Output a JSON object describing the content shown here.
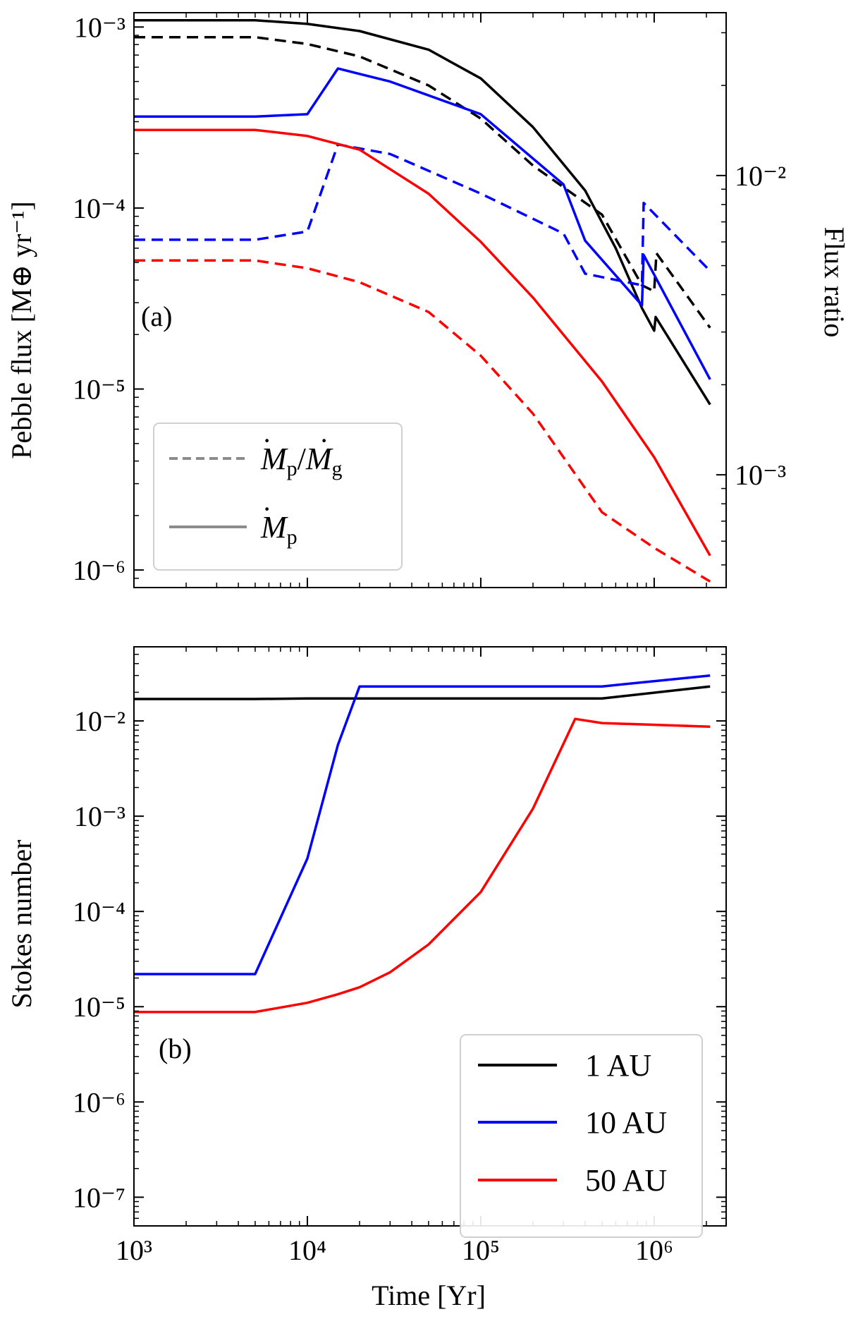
{
  "chart_data": [
    {
      "type": "line",
      "panel_label": "(a)",
      "xscale": "log",
      "yscale": "log",
      "xlim": [
        1000,
        2600000
      ],
      "ylim": [
        8e-07,
        0.0012
      ],
      "y2lim": [
        0.00042,
        0.035
      ],
      "xlabel": "",
      "ylabel": "Pebble flux [M⊕ yr⁻¹]",
      "y2label": "Flux ratio",
      "xticks": [
        {
          "value": 1000,
          "label": "10³"
        },
        {
          "value": 10000,
          "label": "10⁴"
        },
        {
          "value": 100000,
          "label": "10⁵"
        },
        {
          "value": 1000000,
          "label": "10⁶"
        }
      ],
      "yticks": [
        {
          "value": 1e-06,
          "label": "10⁻⁶"
        },
        {
          "value": 1e-05,
          "label": "10⁻⁵"
        },
        {
          "value": 0.0001,
          "label": "10⁻⁴"
        },
        {
          "value": 0.001,
          "label": "10⁻³"
        }
      ],
      "y2ticks": [
        {
          "value": 0.001,
          "label": "10⁻³"
        },
        {
          "value": 0.01,
          "label": "10⁻²"
        }
      ],
      "legend": {
        "placement": "lower-left",
        "entries": [
          {
            "label": "Ṁp/Ṁg",
            "style": "dashed",
            "color": "#8c8c8c"
          },
          {
            "label": "Ṁp",
            "style": "solid",
            "color": "#8c8c8c"
          }
        ]
      },
      "series": [
        {
          "name": "1 AU Ṁp",
          "color": "#000000",
          "style": "solid",
          "axis": "left",
          "x": [
            1000,
            5000,
            10000,
            20000,
            50000,
            100000,
            200000,
            400000,
            600000,
            850000,
            1000000,
            1020000,
            2100000
          ],
          "y": [
            0.00109,
            0.00109,
            0.00104,
            0.00095,
            0.00075,
            0.00052,
            0.00028,
            0.000125,
            6e-05,
            2.8e-05,
            2.1e-05,
            2.5e-05,
            8.2e-06
          ]
        },
        {
          "name": "1 AU Ṁp/Ṁg",
          "color": "#000000",
          "style": "dashed",
          "axis": "right",
          "x": [
            1000,
            5000,
            10000,
            20000,
            50000,
            100000,
            200000,
            500000,
            850000,
            1000000,
            1030000,
            2100000
          ],
          "y": [
            0.029,
            0.029,
            0.0275,
            0.025,
            0.02,
            0.0155,
            0.0108,
            0.0074,
            0.0043,
            0.0041,
            0.0055,
            0.0031
          ]
        },
        {
          "name": "10 AU Ṁp",
          "color": "#0000ff",
          "style": "solid",
          "axis": "left",
          "x": [
            1000,
            5000,
            10000,
            15000,
            30000,
            100000,
            300000,
            400000,
            850000,
            870000,
            2100000
          ],
          "y": [
            0.00032,
            0.00032,
            0.00033,
            0.00059,
            0.0005,
            0.00033,
            0.000135,
            6.6e-05,
            2.9e-05,
            5.5e-05,
            1.13e-05
          ]
        },
        {
          "name": "10 AU Ṁp/Ṁg",
          "color": "#0000ff",
          "style": "dashed",
          "axis": "right",
          "x": [
            1000,
            5000,
            10000,
            15000,
            30000,
            100000,
            300000,
            400000,
            850000,
            870000,
            2100000
          ],
          "y": [
            0.0061,
            0.0061,
            0.0065,
            0.0127,
            0.0118,
            0.0087,
            0.0064,
            0.0047,
            0.0043,
            0.0081,
            0.0048
          ]
        },
        {
          "name": "50 AU Ṁp",
          "color": "#ff0000",
          "style": "solid",
          "axis": "left",
          "x": [
            1000,
            5000,
            10000,
            20000,
            50000,
            100000,
            200000,
            500000,
            1000000,
            2100000
          ],
          "y": [
            0.00027,
            0.00027,
            0.00025,
            0.00021,
            0.00012,
            6.5e-05,
            3.2e-05,
            1.1e-05,
            4.2e-06,
            1.2e-06
          ]
        },
        {
          "name": "50 AU Ṁp/Ṁg",
          "color": "#ff0000",
          "style": "dashed",
          "axis": "right",
          "x": [
            1000,
            5000,
            10000,
            20000,
            50000,
            100000,
            200000,
            500000,
            1000000,
            2100000
          ],
          "y": [
            0.0052,
            0.0052,
            0.0049,
            0.0044,
            0.0035,
            0.0025,
            0.0016,
            0.00075,
            0.00057,
            0.00044
          ]
        }
      ]
    },
    {
      "type": "line",
      "panel_label": "(b)",
      "xscale": "log",
      "yscale": "log",
      "xlim": [
        1000,
        2600000
      ],
      "ylim": [
        5e-08,
        0.06
      ],
      "xlabel": "Time [Yr]",
      "ylabel": "Stokes number",
      "xticks": [
        {
          "value": 1000,
          "label": "10³"
        },
        {
          "value": 10000,
          "label": "10⁴"
        },
        {
          "value": 100000,
          "label": "10⁵"
        },
        {
          "value": 1000000,
          "label": "10⁶"
        }
      ],
      "yticks": [
        {
          "value": 1e-07,
          "label": "10⁻⁷"
        },
        {
          "value": 1e-06,
          "label": "10⁻⁶"
        },
        {
          "value": 1e-05,
          "label": "10⁻⁵"
        },
        {
          "value": 0.0001,
          "label": "10⁻⁴"
        },
        {
          "value": 0.001,
          "label": "10⁻³"
        },
        {
          "value": 0.01,
          "label": "10⁻²"
        }
      ],
      "legend": {
        "placement": "lower-right",
        "entries": [
          {
            "label": "1 AU",
            "style": "solid",
            "color": "#000000"
          },
          {
            "label": "10 AU",
            "style": "solid",
            "color": "#0000ff"
          },
          {
            "label": "50 AU",
            "style": "solid",
            "color": "#ff0000"
          }
        ]
      },
      "series": [
        {
          "name": "1 AU",
          "color": "#000000",
          "style": "solid",
          "x": [
            1000,
            5000,
            10000,
            100000,
            500000,
            2100000
          ],
          "y": [
            0.017,
            0.017,
            0.0172,
            0.0172,
            0.0172,
            0.023
          ]
        },
        {
          "name": "10 AU",
          "color": "#0000ff",
          "style": "solid",
          "x": [
            1000,
            5000,
            10000,
            15000,
            20000,
            500000,
            2100000
          ],
          "y": [
            2.2e-05,
            2.2e-05,
            0.00036,
            0.0056,
            0.023,
            0.023,
            0.03
          ]
        },
        {
          "name": "50 AU",
          "color": "#ff0000",
          "style": "solid",
          "x": [
            1000,
            5000,
            10000,
            15000,
            20000,
            30000,
            50000,
            100000,
            200000,
            350000,
            500000,
            2100000
          ],
          "y": [
            8.8e-06,
            8.8e-06,
            1.1e-05,
            1.35e-05,
            1.6e-05,
            2.3e-05,
            4.5e-05,
            0.00016,
            0.0012,
            0.0105,
            0.0095,
            0.0087
          ]
        }
      ]
    }
  ]
}
